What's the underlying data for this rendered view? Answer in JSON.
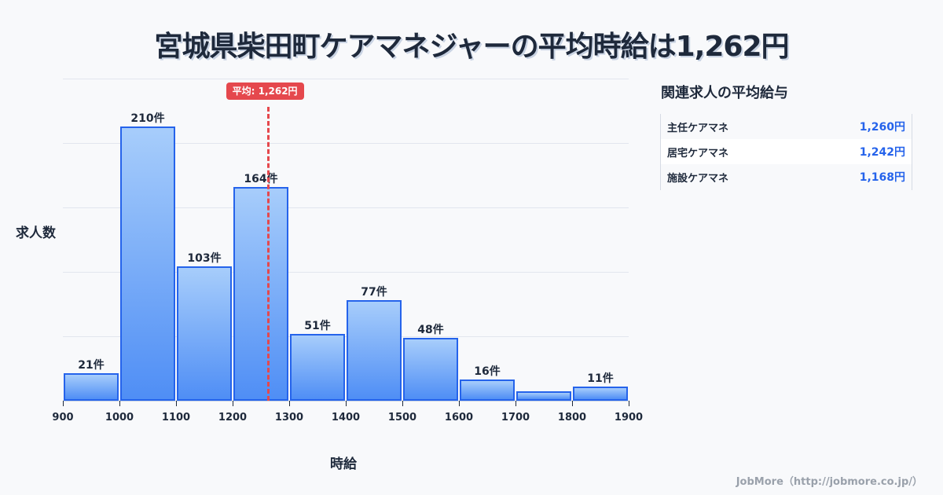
{
  "title": "宮城県柴田町ケアマネジャーの平均時給は1,262円",
  "chart_data": {
    "type": "bar",
    "title": "宮城県柴田町ケアマネジャーの平均時給は1,262円",
    "xlabel": "時給",
    "ylabel": "求人数",
    "categories": [
      "900-1000",
      "1000-1100",
      "1100-1200",
      "1200-1300",
      "1300-1400",
      "1400-1500",
      "1500-1600",
      "1600-1700",
      "1700-1800",
      "1800-1900"
    ],
    "bin_edges": [
      900,
      1000,
      1100,
      1200,
      1300,
      1400,
      1500,
      1600,
      1700,
      1800,
      1900
    ],
    "values": [
      21,
      210,
      103,
      164,
      51,
      77,
      48,
      16,
      7,
      11
    ],
    "labels": [
      "21件",
      "210件",
      "103件",
      "164件",
      "51件",
      "77件",
      "48件",
      "16件",
      "",
      "11件"
    ],
    "xlim": [
      900,
      1900
    ],
    "ylim": [
      0,
      247
    ],
    "grid": true,
    "average": {
      "value": 1262,
      "label": "平均: 1,262円"
    }
  },
  "axis": {
    "x_ticks": [
      "900",
      "1000",
      "1100",
      "1200",
      "1300",
      "1400",
      "1500",
      "1600",
      "1700",
      "1800",
      "1900"
    ],
    "x_label": "時給",
    "y_label": "求人数"
  },
  "sidebar": {
    "title": "関連求人の平均給与",
    "rows": [
      {
        "name": "主任ケアマネ",
        "value": "1,260円"
      },
      {
        "name": "居宅ケアマネ",
        "value": "1,242円"
      },
      {
        "name": "施設ケアマネ",
        "value": "1,168円"
      }
    ]
  },
  "footer": "JobMore（http://jobmore.co.jp/）",
  "colors": {
    "bar_border": "#2563eb",
    "bar_top": "#a7cdfb",
    "bar_bottom": "#4f8ef5",
    "average_line": "#e5484d",
    "value_text": "#2563eb"
  }
}
